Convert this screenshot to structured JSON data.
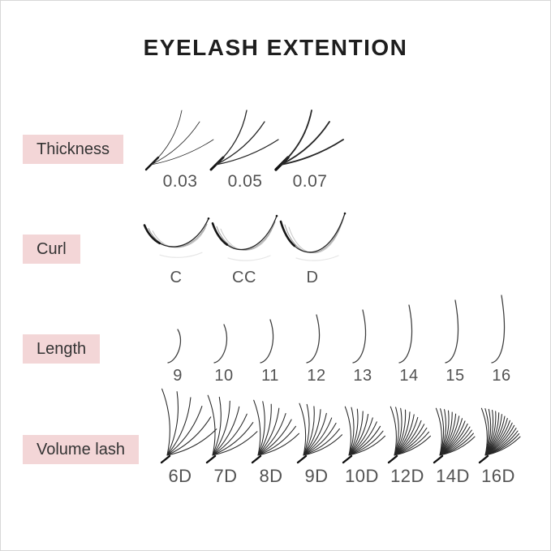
{
  "title": "EYELASH EXTENTION",
  "colors": {
    "label_bg": "#f3d6d7",
    "label_text": "#333333",
    "title_text": "#1e1e1e",
    "value_text": "#525252",
    "lash_stroke": "#262626"
  },
  "rows": {
    "thickness": {
      "label": "Thickness",
      "items": [
        {
          "value": "0.03",
          "stroke_width": 0.8
        },
        {
          "value": "0.05",
          "stroke_width": 1.3
        },
        {
          "value": "0.07",
          "stroke_width": 1.8
        }
      ]
    },
    "curl": {
      "label": "Curl",
      "items": [
        {
          "value": "C",
          "depth": 0.55
        },
        {
          "value": "CC",
          "depth": 0.78
        },
        {
          "value": "D",
          "depth": 1.0
        }
      ]
    },
    "length": {
      "label": "Length",
      "items": [
        {
          "value": "9",
          "mm": 9
        },
        {
          "value": "10",
          "mm": 10
        },
        {
          "value": "11",
          "mm": 11
        },
        {
          "value": "12",
          "mm": 12
        },
        {
          "value": "13",
          "mm": 13
        },
        {
          "value": "14",
          "mm": 14
        },
        {
          "value": "15",
          "mm": 15
        },
        {
          "value": "16",
          "mm": 16
        }
      ]
    },
    "volume": {
      "label": "Volume lash",
      "items": [
        {
          "value": "6D",
          "strands": 6
        },
        {
          "value": "7D",
          "strands": 7
        },
        {
          "value": "8D",
          "strands": 8
        },
        {
          "value": "9D",
          "strands": 9
        },
        {
          "value": "10D",
          "strands": 10
        },
        {
          "value": "12D",
          "strands": 12
        },
        {
          "value": "14D",
          "strands": 14
        },
        {
          "value": "16D",
          "strands": 16
        }
      ]
    }
  }
}
